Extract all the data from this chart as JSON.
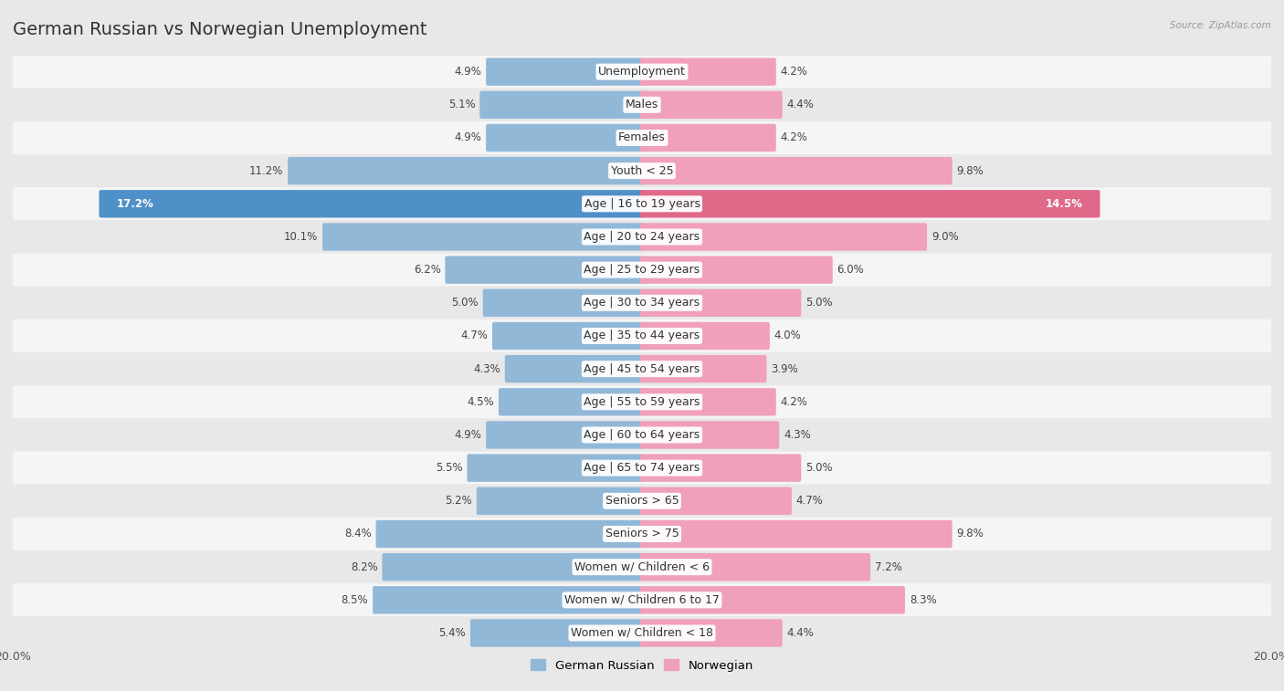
{
  "title": "German Russian vs Norwegian Unemployment",
  "source": "Source: ZipAtlas.com",
  "categories": [
    "Unemployment",
    "Males",
    "Females",
    "Youth < 25",
    "Age | 16 to 19 years",
    "Age | 20 to 24 years",
    "Age | 25 to 29 years",
    "Age | 30 to 34 years",
    "Age | 35 to 44 years",
    "Age | 45 to 54 years",
    "Age | 55 to 59 years",
    "Age | 60 to 64 years",
    "Age | 65 to 74 years",
    "Seniors > 65",
    "Seniors > 75",
    "Women w/ Children < 6",
    "Women w/ Children 6 to 17",
    "Women w/ Children < 18"
  ],
  "german_russian": [
    4.9,
    5.1,
    4.9,
    11.2,
    17.2,
    10.1,
    6.2,
    5.0,
    4.7,
    4.3,
    4.5,
    4.9,
    5.5,
    5.2,
    8.4,
    8.2,
    8.5,
    5.4
  ],
  "norwegian": [
    4.2,
    4.4,
    4.2,
    9.8,
    14.5,
    9.0,
    6.0,
    5.0,
    4.0,
    3.9,
    4.2,
    4.3,
    5.0,
    4.7,
    9.8,
    7.2,
    8.3,
    4.4
  ],
  "left_color": "#92b8d8",
  "right_color": "#f0a0b8",
  "highlight_left_color": "#5090c8",
  "highlight_right_color": "#e06888",
  "bg_color": "#e8e8e8",
  "row_bg_light": "#f5f5f5",
  "row_bg_dark": "#e8e8e8",
  "max_value": 20.0,
  "legend_left": "German Russian",
  "legend_right": "Norwegian",
  "title_fontsize": 14,
  "label_fontsize": 9,
  "value_fontsize": 8.5,
  "highlight_row": 4
}
